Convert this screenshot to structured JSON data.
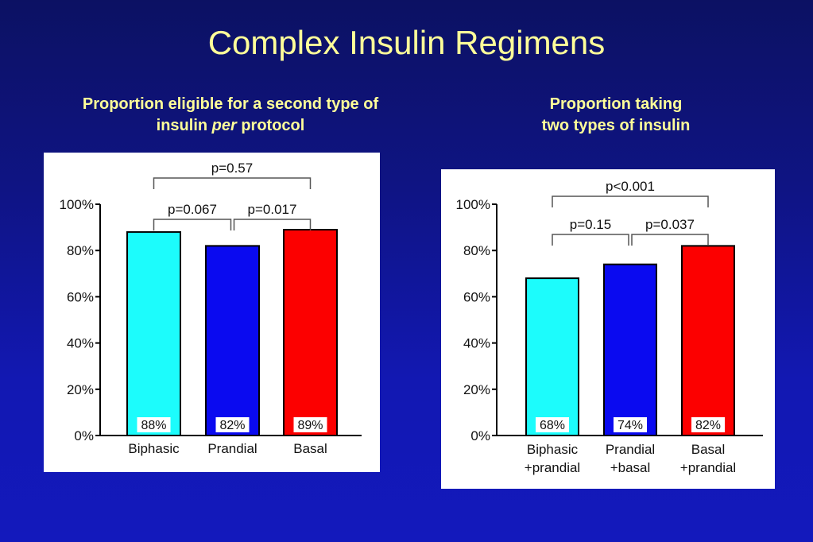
{
  "slide": {
    "title": "Complex Insulin Regimens",
    "left_subtitle": {
      "line1": "Proportion eligible for a second type of",
      "line2_pre": "insulin ",
      "line2_italic": "per",
      "line2_post": " protocol"
    },
    "right_subtitle": {
      "line1": "Proportion taking",
      "line2": "two types of insulin"
    }
  },
  "chart_data": [
    {
      "type": "bar",
      "title": "Proportion eligible for a second type of insulin per protocol",
      "categories": [
        [
          "Biphasic"
        ],
        [
          "Prandial"
        ],
        [
          "Basal"
        ]
      ],
      "values": [
        88,
        82,
        89
      ],
      "value_labels": [
        "88%",
        "82%",
        "89%"
      ],
      "colors": [
        "#1cfcfc",
        "#0a0af0",
        "#fc0000"
      ],
      "ylim": [
        0,
        100
      ],
      "yticks": [
        "0%",
        "20%",
        "40%",
        "60%",
        "80%",
        "100%"
      ],
      "ytick_values": [
        0,
        20,
        40,
        60,
        80,
        100
      ],
      "xlabel": "",
      "ylabel": "",
      "grid": false,
      "comparisons": [
        {
          "from": 0,
          "to": 1,
          "label": "p=0.067",
          "level": 1
        },
        {
          "from": 1,
          "to": 2,
          "label": "p=0.017",
          "level": 1
        },
        {
          "from": 0,
          "to": 2,
          "label": "p=0.57",
          "level": 2
        }
      ]
    },
    {
      "type": "bar",
      "title": "Proportion taking two types of insulin",
      "categories": [
        [
          "Biphasic",
          "+prandial"
        ],
        [
          "Prandial",
          "+basal"
        ],
        [
          "Basal",
          "+prandial"
        ]
      ],
      "values": [
        68,
        74,
        82
      ],
      "value_labels": [
        "68%",
        "74%",
        "82%"
      ],
      "colors": [
        "#1cfcfc",
        "#0a0af0",
        "#fc0000"
      ],
      "ylim": [
        0,
        100
      ],
      "yticks": [
        "0%",
        "20%",
        "40%",
        "60%",
        "80%",
        "100%"
      ],
      "ytick_values": [
        0,
        20,
        40,
        60,
        80,
        100
      ],
      "xlabel": "",
      "ylabel": "",
      "grid": false,
      "comparisons": [
        {
          "from": 0,
          "to": 1,
          "label": "p=0.15",
          "level": 1
        },
        {
          "from": 1,
          "to": 2,
          "label": "p=0.037",
          "level": 1
        },
        {
          "from": 0,
          "to": 2,
          "label": "p<0.001",
          "level": 2
        }
      ]
    }
  ]
}
